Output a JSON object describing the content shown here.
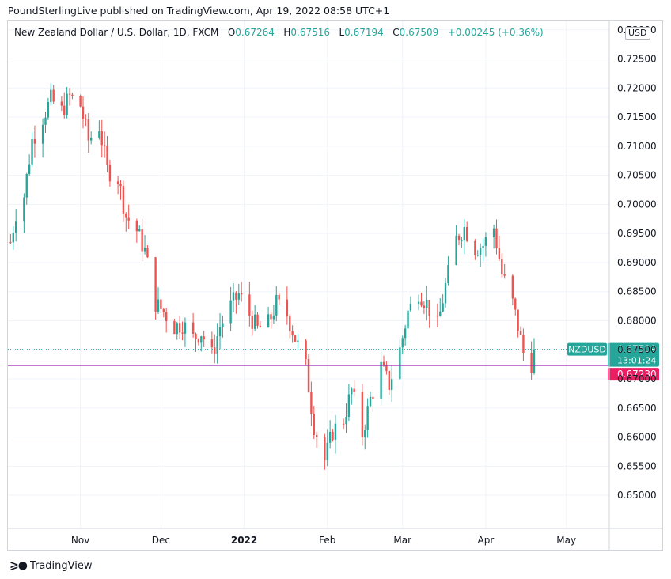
{
  "header": {
    "text": "PoundSterlingLive published on TradingView.com, Apr 19, 2022 08:58 UTC+1"
  },
  "legend": {
    "title": "New Zealand Dollar / U.S. Dollar, 1D, FXCM",
    "o_label": "O",
    "o": "0.67264",
    "h_label": "H",
    "h": "0.67516",
    "l_label": "L",
    "l": "0.67194",
    "c_label": "C",
    "c": "0.67509",
    "change": "+0.00245 (+0.36%)"
  },
  "price_axis": {
    "unit": "USD"
  },
  "footer": {
    "brand": "TradingView"
  },
  "colors": {
    "up": "#26a69a",
    "down": "#ef5350",
    "support_line": "#9c27b0",
    "price_line": "#26a69a",
    "marker": "#e91e63",
    "grid": "#f0f3fa"
  },
  "chart_data": {
    "type": "candlestick",
    "symbol": "NZDUSD",
    "timeframe": "1D",
    "ylim": [
      0.6443,
      0.7316
    ],
    "yticks": [
      0.65,
      0.655,
      0.66,
      0.665,
      0.67,
      0.675,
      0.68,
      0.685,
      0.69,
      0.695,
      0.7,
      0.705,
      0.71,
      0.715,
      0.72,
      0.725,
      0.73
    ],
    "ytick_labels": [
      "0.65000",
      "0.65500",
      "0.66000",
      "0.66500",
      "0.67000",
      "0.67500",
      "0.68000",
      "0.68500",
      "0.69000",
      "0.69500",
      "0.70000",
      "0.70500",
      "0.71000",
      "0.71500",
      "0.72000",
      "0.72500",
      "0.73000"
    ],
    "xticks": [
      {
        "label": "Nov",
        "date": "2021-11-01",
        "bold": false
      },
      {
        "label": "Dec",
        "date": "2021-12-01",
        "bold": false
      },
      {
        "label": "2022",
        "date": "2022-01-01",
        "bold": true
      },
      {
        "label": "Feb",
        "date": "2022-02-01",
        "bold": false
      },
      {
        "label": "Mar",
        "date": "2022-03-01",
        "bold": false
      },
      {
        "label": "Apr",
        "date": "2022-04-01",
        "bold": false
      },
      {
        "label": "May",
        "date": "2022-05-01",
        "bold": false
      }
    ],
    "xlim": [
      "2021-10-05",
      "2022-05-17"
    ],
    "support_level": {
      "value": 0.6723,
      "label": "0.67230"
    },
    "last_price": {
      "value": 0.67509,
      "label": "0.67509",
      "symbol_label": "NZDUSD",
      "countdown": "13:01:24"
    },
    "close_path": [
      [
        "2021-10-06",
        0.6935
      ],
      [
        "2021-10-08",
        0.6985
      ],
      [
        "2021-10-11",
        0.7015
      ],
      [
        "2021-10-14",
        0.711
      ],
      [
        "2021-10-18",
        0.715
      ],
      [
        "2021-10-21",
        0.718
      ],
      [
        "2021-10-25",
        0.716
      ],
      [
        "2021-10-28",
        0.7185
      ],
      [
        "2021-11-01",
        0.717
      ],
      [
        "2021-11-04",
        0.711
      ],
      [
        "2021-11-08",
        0.7135
      ],
      [
        "2021-11-11",
        0.706
      ],
      [
        "2021-11-15",
        0.7045
      ],
      [
        "2021-11-18",
        0.698
      ],
      [
        "2021-11-22",
        0.6955
      ],
      [
        "2021-11-25",
        0.692
      ],
      [
        "2021-11-29",
        0.683
      ],
      [
        "2021-12-02",
        0.6815
      ],
      [
        "2021-12-06",
        0.679
      ],
      [
        "2021-12-09",
        0.6795
      ],
      [
        "2021-12-13",
        0.677
      ],
      [
        "2021-12-16",
        0.678
      ],
      [
        "2021-12-20",
        0.674
      ],
      [
        "2021-12-23",
        0.679
      ],
      [
        "2021-12-27",
        0.6825
      ],
      [
        "2021-12-30",
        0.6845
      ],
      [
        "2022-01-03",
        0.681
      ],
      [
        "2022-01-06",
        0.6785
      ],
      [
        "2022-01-10",
        0.6795
      ],
      [
        "2022-01-13",
        0.683
      ],
      [
        "2022-01-17",
        0.681
      ],
      [
        "2022-01-20",
        0.677
      ],
      [
        "2022-01-24",
        0.672
      ],
      [
        "2022-01-27",
        0.662
      ],
      [
        "2022-01-31",
        0.656
      ],
      [
        "2022-02-03",
        0.661
      ],
      [
        "2022-02-07",
        0.663
      ],
      [
        "2022-02-10",
        0.668
      ],
      [
        "2022-02-14",
        0.6605
      ],
      [
        "2022-02-17",
        0.6665
      ],
      [
        "2022-02-21",
        0.672
      ],
      [
        "2022-02-24",
        0.669
      ],
      [
        "2022-02-28",
        0.675
      ],
      [
        "2022-03-03",
        0.6815
      ],
      [
        "2022-03-07",
        0.685
      ],
      [
        "2022-03-10",
        0.683
      ],
      [
        "2022-03-14",
        0.679
      ],
      [
        "2022-03-17",
        0.686
      ],
      [
        "2022-03-21",
        0.694
      ],
      [
        "2022-03-24",
        0.696
      ],
      [
        "2022-03-28",
        0.6925
      ],
      [
        "2022-03-31",
        0.693
      ],
      [
        "2022-04-04",
        0.696
      ],
      [
        "2022-04-07",
        0.688
      ],
      [
        "2022-04-11",
        0.683
      ],
      [
        "2022-04-13",
        0.679
      ],
      [
        "2022-04-15",
        0.6745
      ],
      [
        "2022-04-18",
        0.67264
      ],
      [
        "2022-04-19",
        0.67509
      ]
    ]
  }
}
